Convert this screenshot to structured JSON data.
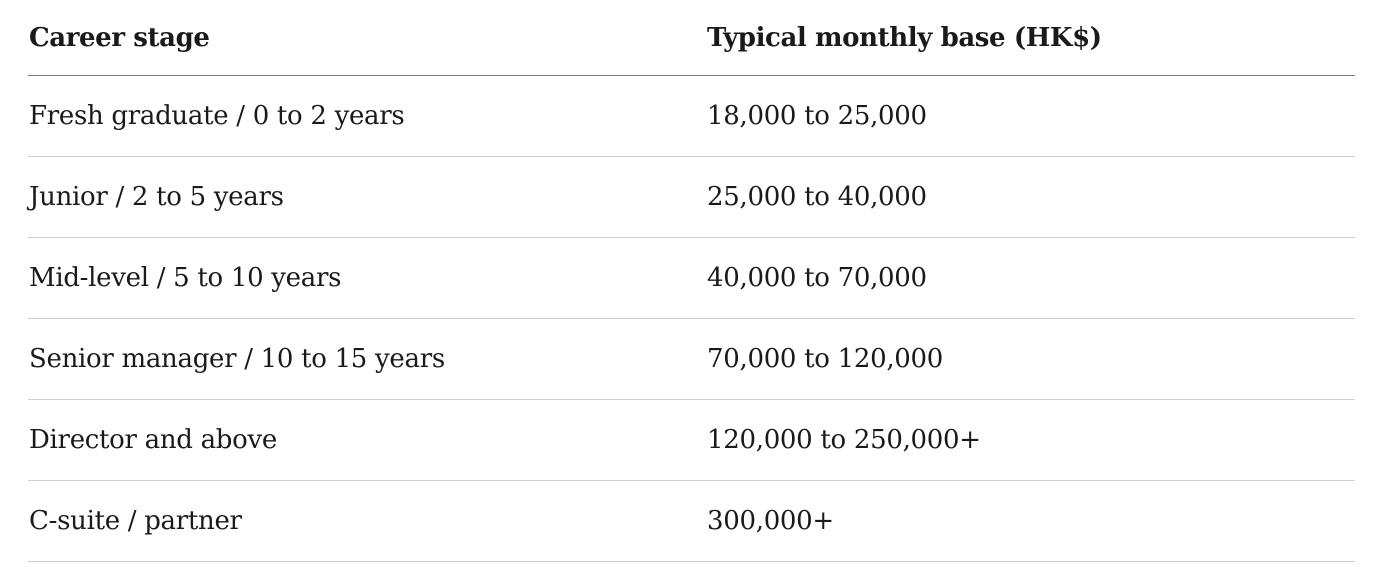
{
  "table": {
    "headers": [
      "Career stage",
      "Typical monthly base (HK$)"
    ],
    "rows": [
      [
        "Fresh graduate / 0 to 2 years",
        "18,000 to 25,000"
      ],
      [
        "Junior / 2 to 5 years",
        "25,000 to 40,000"
      ],
      [
        "Mid-level / 5 to 10 years",
        "40,000 to 70,000"
      ],
      [
        "Senior manager / 10 to 15 years",
        "70,000 to 120,000"
      ],
      [
        "Director and above",
        "120,000 to 250,000+"
      ],
      [
        "C-suite / partner",
        "300,000+"
      ]
    ]
  }
}
